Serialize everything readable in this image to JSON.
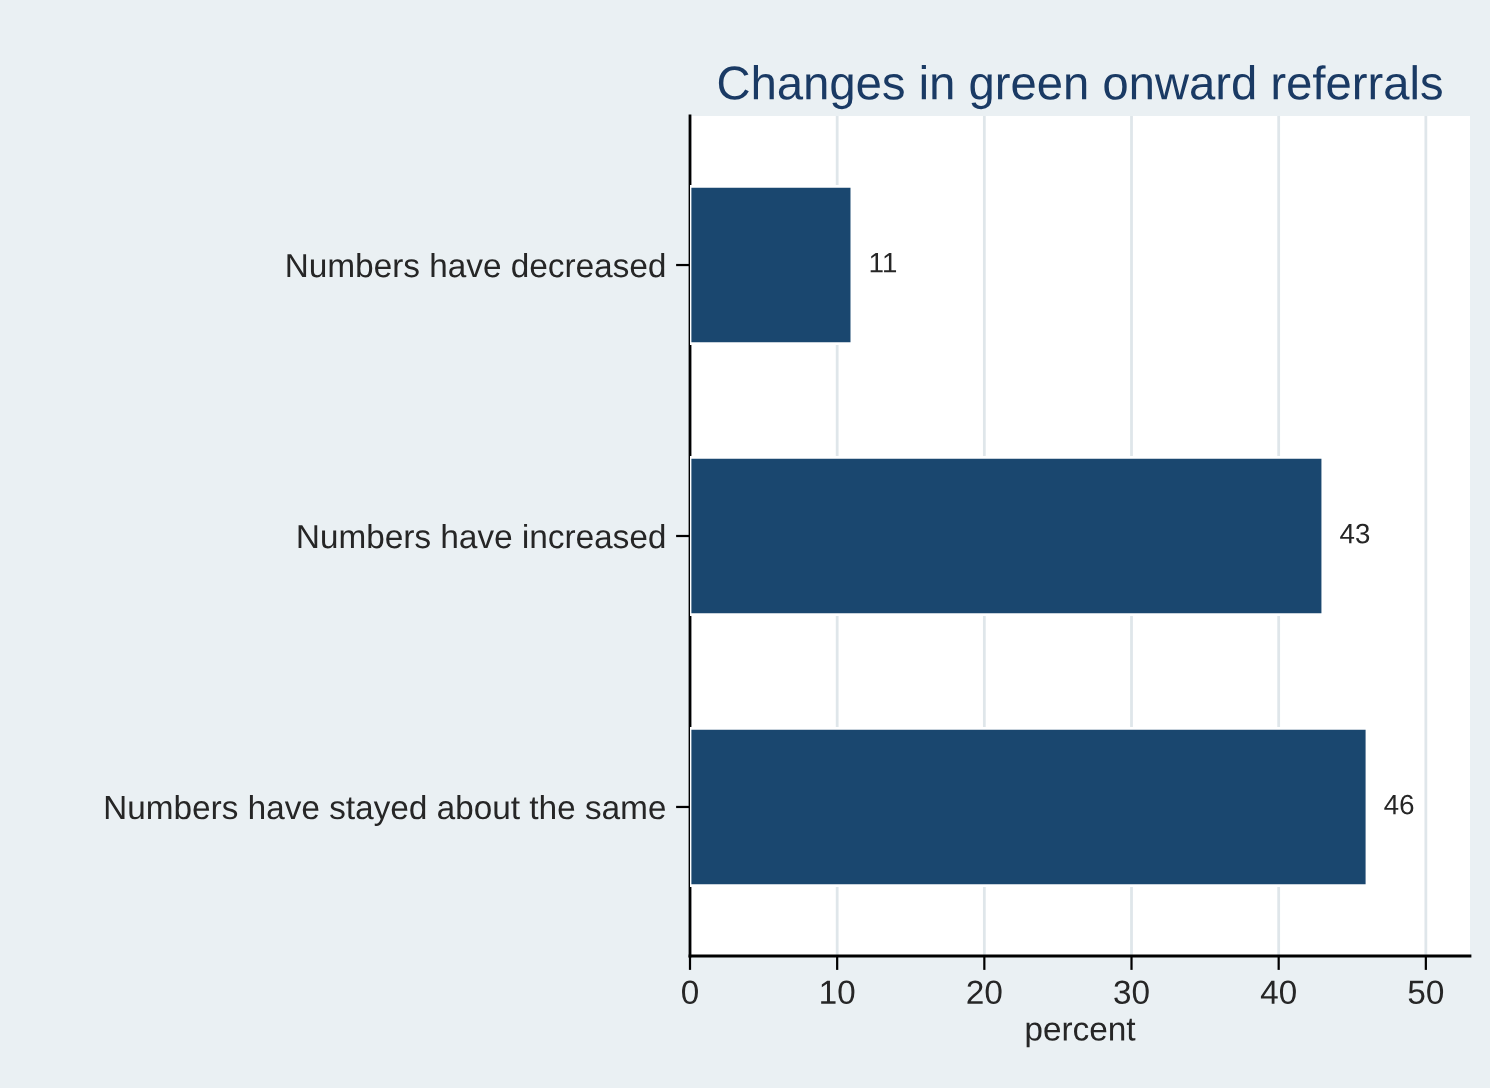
{
  "chart_data": {
    "type": "bar",
    "orientation": "horizontal",
    "title": "Changes in green onward referrals",
    "xlabel": "percent",
    "categories": [
      "Numbers have decreased",
      "Numbers have increased",
      "Numbers have stayed about the same"
    ],
    "values": [
      11,
      43,
      46
    ],
    "color": "#1a476f",
    "xlim": [
      0,
      53
    ],
    "xticks": [
      0,
      10,
      20,
      30,
      40,
      50
    ],
    "grid": "x",
    "data_labels": true,
    "legend": false
  }
}
